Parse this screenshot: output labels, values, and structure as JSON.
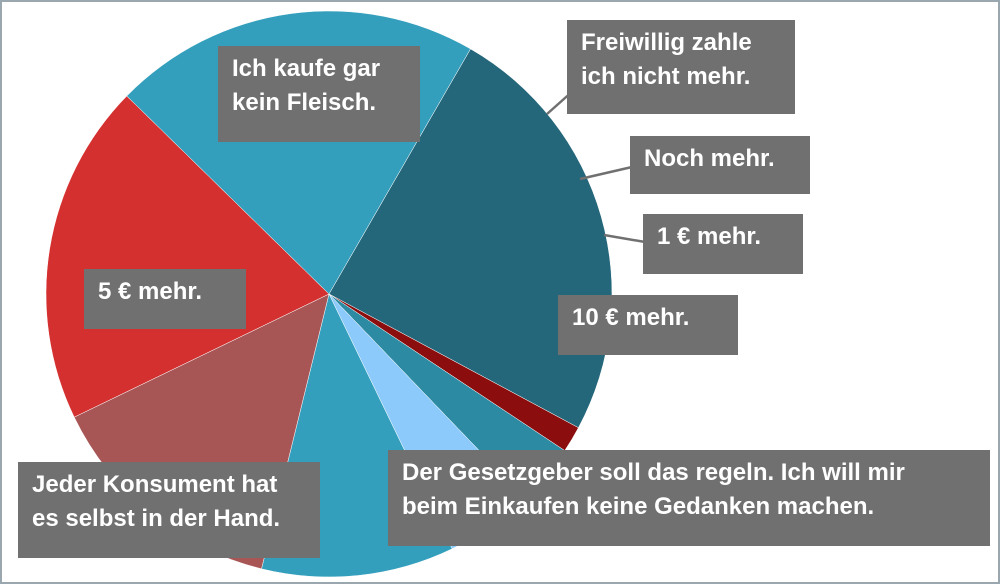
{
  "chart_data": {
    "type": "pie",
    "slices": [
      {
        "label_lines": [
          "Ich kaufe gar",
          "kein Fleisch."
        ],
        "value": 24.5,
        "color": "#24667a"
      },
      {
        "label_lines": [
          "Freiwillig zahle",
          "ich nicht mehr."
        ],
        "value": 1.5,
        "color": "#8b0d0d"
      },
      {
        "label_lines": [
          "Noch mehr."
        ],
        "value": 3.5,
        "color": "#2d8aa3"
      },
      {
        "label_lines": [
          "1 €  mehr."
        ],
        "value": 5.0,
        "color": "#8ccafb"
      },
      {
        "label_lines": [
          "10 €  mehr."
        ],
        "value": 11.0,
        "color": "#339fbd"
      },
      {
        "label_lines": [
          "Der Gesetzgeber soll das regeln. Ich will mir",
          "beim Einkaufen keine Gedanken machen."
        ],
        "value": 14.0,
        "color": "#a85555"
      },
      {
        "label_lines": [
          "Jeder Konsument hat",
          "es selbst in der Hand."
        ],
        "value": 19.5,
        "color": "#d43030"
      },
      {
        "label_lines": [
          "5 €  mehr."
        ],
        "value": 21.0,
        "color": "#339fbd"
      }
    ],
    "start_angle_deg": -60,
    "legend": "none",
    "label_style": "callout-boxes",
    "label_box_color": "#707070",
    "label_text_color": "#ffffff"
  }
}
